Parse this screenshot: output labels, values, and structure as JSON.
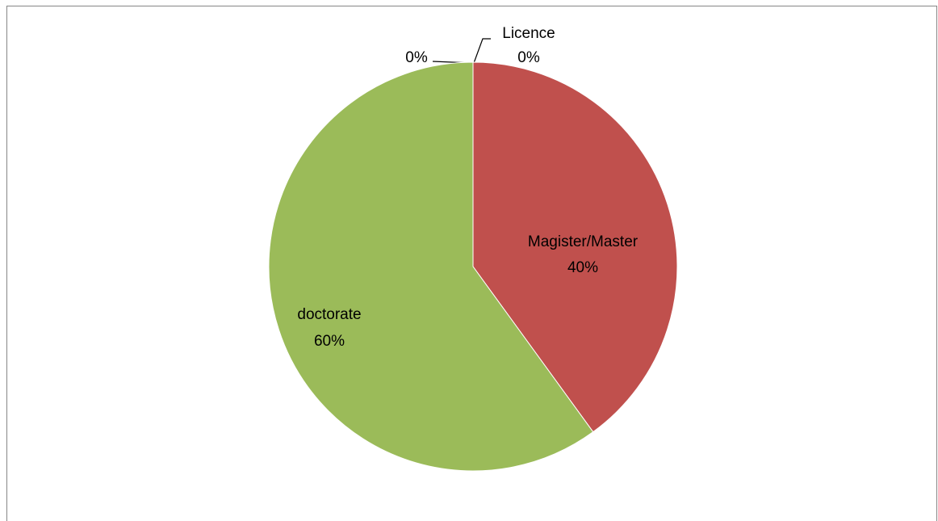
{
  "chart_data": {
    "type": "pie",
    "categories": [
      "Licence",
      "Magister/Master",
      "doctorate",
      null
    ],
    "values": [
      0,
      40,
      60,
      0
    ],
    "value_labels": [
      "0%",
      "40%",
      "60%",
      "0%"
    ],
    "colors": [
      "#4f81bd",
      "#c0504d",
      "#9bbb59",
      "#8064a2"
    ]
  }
}
